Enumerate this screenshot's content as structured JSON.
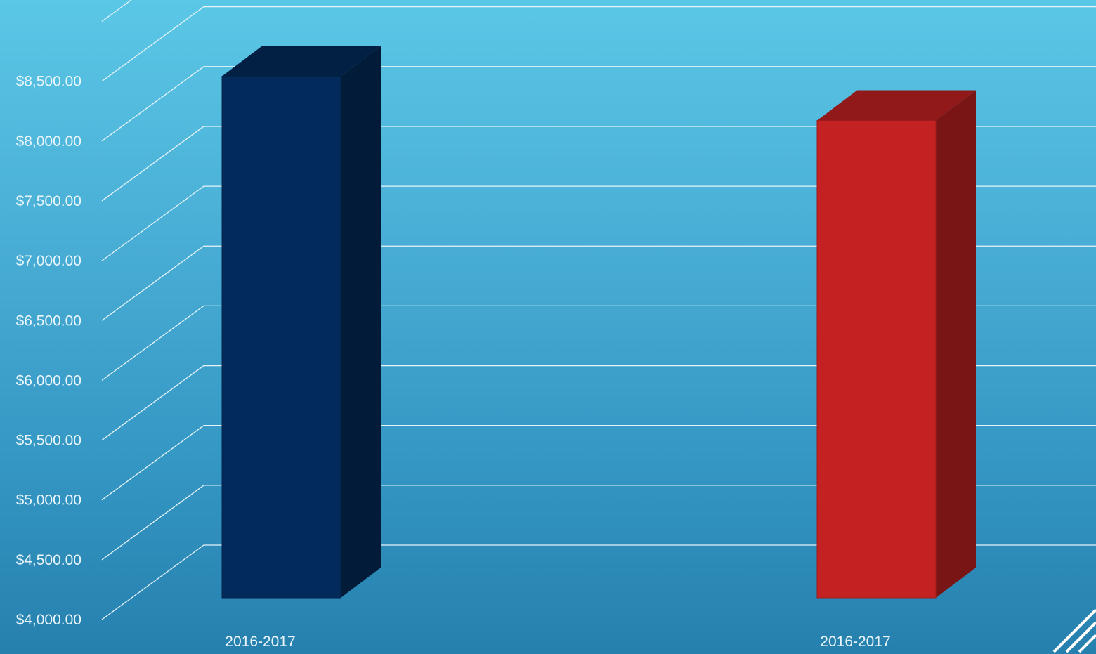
{
  "chart_data": {
    "type": "bar",
    "style": "3d-column",
    "categories": [
      "2016-2017",
      "2016-2017"
    ],
    "values": [
      8360,
      7990
    ],
    "colors": [
      "#022b5c",
      "#c42222"
    ],
    "ylim": [
      4000,
      9000
    ],
    "y_tick_step": 500,
    "y_tick_labels": [
      "$4,000.00",
      "$4,500.00",
      "$5,000.00",
      "$5,500.00",
      "$6,000.00",
      "$6,500.00",
      "$7,000.00",
      "$7,500.00",
      "$8,000.00",
      "$8,500.00"
    ],
    "grid": true,
    "legend": "none",
    "title": "",
    "xlabel": "",
    "ylabel": ""
  }
}
